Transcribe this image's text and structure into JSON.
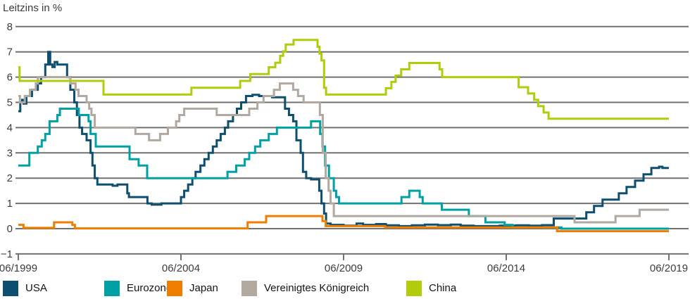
{
  "header": {
    "title": "Leitzins in %"
  },
  "legend": {
    "items": [
      {
        "label": "USA",
        "color": "#0e4e6e"
      },
      {
        "label": "Eurozone",
        "color": "#00a0a5"
      },
      {
        "label": "Japan",
        "color": "#ef7d00"
      },
      {
        "label": "Vereinigtes Königreich",
        "color": "#b1a8a0"
      },
      {
        "label": "China",
        "color": "#b2cb0b"
      }
    ]
  },
  "chart_data": {
    "type": "line",
    "line_style": "step-after",
    "title": "Leitzins in %",
    "ylabel": "Leitzins in %",
    "xlabel": "",
    "grid": true,
    "legend_position": "bottom",
    "ylim": [
      -1,
      8
    ],
    "yticks": [
      8,
      7,
      6,
      5,
      4,
      3,
      2,
      1,
      0,
      -1
    ],
    "ytick_labels": [
      "8",
      "7",
      "6",
      "5",
      "4",
      "3",
      "2",
      "1",
      "0",
      "−1"
    ],
    "xlim": [
      1999.5,
      2019.5
    ],
    "xticks": [
      {
        "t": 1999.5,
        "label": "06/1999"
      },
      {
        "t": 2004.5,
        "label": "06/2004"
      },
      {
        "t": 2009.5,
        "label": "06/2009"
      },
      {
        "t": 2014.5,
        "label": "06/2014"
      },
      {
        "t": 2019.5,
        "label": "06/2019"
      }
    ],
    "grid_color": "#717171",
    "text_color": "#3c3c3c",
    "series": [
      {
        "name": "USA",
        "color": "#0e4e6e",
        "points": [
          [
            1999.5,
            4.65
          ],
          [
            1999.56,
            5.0
          ],
          [
            1999.62,
            5.1
          ],
          [
            1999.66,
            4.95
          ],
          [
            1999.75,
            5.25
          ],
          [
            1999.92,
            5.5
          ],
          [
            2000.1,
            5.75
          ],
          [
            2000.2,
            6.0
          ],
          [
            2000.33,
            6.5
          ],
          [
            2000.42,
            7.0
          ],
          [
            2000.48,
            6.5
          ],
          [
            2000.55,
            6.4
          ],
          [
            2000.62,
            6.6
          ],
          [
            2000.7,
            6.5
          ],
          [
            2001.0,
            6.0
          ],
          [
            2001.1,
            5.5
          ],
          [
            2001.22,
            5.0
          ],
          [
            2001.3,
            4.5
          ],
          [
            2001.38,
            4.0
          ],
          [
            2001.46,
            3.75
          ],
          [
            2001.6,
            3.5
          ],
          [
            2001.72,
            3.0
          ],
          [
            2001.78,
            2.5
          ],
          [
            2001.85,
            2.0
          ],
          [
            2001.93,
            1.75
          ],
          [
            2002.4,
            1.7
          ],
          [
            2002.55,
            1.75
          ],
          [
            2002.85,
            1.4
          ],
          [
            2002.9,
            1.25
          ],
          [
            2003.47,
            1.0
          ],
          [
            2003.6,
            0.95
          ],
          [
            2003.9,
            1.0
          ],
          [
            2004.5,
            1.25
          ],
          [
            2004.6,
            1.5
          ],
          [
            2004.72,
            1.75
          ],
          [
            2004.85,
            2.0
          ],
          [
            2004.95,
            2.25
          ],
          [
            2005.1,
            2.5
          ],
          [
            2005.22,
            2.75
          ],
          [
            2005.35,
            3.0
          ],
          [
            2005.48,
            3.25
          ],
          [
            2005.6,
            3.5
          ],
          [
            2005.72,
            3.75
          ],
          [
            2005.85,
            4.0
          ],
          [
            2005.95,
            4.25
          ],
          [
            2006.1,
            4.5
          ],
          [
            2006.22,
            4.75
          ],
          [
            2006.35,
            5.0
          ],
          [
            2006.5,
            5.25
          ],
          [
            2006.7,
            5.3
          ],
          [
            2006.9,
            5.25
          ],
          [
            2007.3,
            5.2
          ],
          [
            2007.7,
            4.75
          ],
          [
            2007.82,
            4.5
          ],
          [
            2007.95,
            4.25
          ],
          [
            2008.05,
            3.5
          ],
          [
            2008.18,
            3.0
          ],
          [
            2008.25,
            2.25
          ],
          [
            2008.35,
            2.0
          ],
          [
            2008.5,
            1.95
          ],
          [
            2008.75,
            1.5
          ],
          [
            2008.82,
            1.0
          ],
          [
            2008.9,
            0.6
          ],
          [
            2008.96,
            0.2
          ],
          [
            2009.1,
            0.15
          ],
          [
            2009.5,
            0.12
          ],
          [
            2009.9,
            0.2
          ],
          [
            2010.1,
            0.15
          ],
          [
            2010.5,
            0.18
          ],
          [
            2010.8,
            0.13
          ],
          [
            2011.2,
            0.1
          ],
          [
            2011.6,
            0.13
          ],
          [
            2012.0,
            0.16
          ],
          [
            2012.4,
            0.14
          ],
          [
            2012.8,
            0.16
          ],
          [
            2013.1,
            0.12
          ],
          [
            2013.5,
            0.1
          ],
          [
            2013.9,
            0.1
          ],
          [
            2014.3,
            0.12
          ],
          [
            2014.8,
            0.13
          ],
          [
            2015.2,
            0.12
          ],
          [
            2015.6,
            0.14
          ],
          [
            2015.96,
            0.4
          ],
          [
            2016.96,
            0.65
          ],
          [
            2017.2,
            0.9
          ],
          [
            2017.46,
            1.15
          ],
          [
            2017.96,
            1.4
          ],
          [
            2018.2,
            1.65
          ],
          [
            2018.46,
            1.9
          ],
          [
            2018.72,
            2.15
          ],
          [
            2018.96,
            2.4
          ],
          [
            2019.2,
            2.45
          ],
          [
            2019.3,
            2.4
          ]
        ]
      },
      {
        "name": "Eurozone",
        "color": "#00a0a5",
        "points": [
          [
            1999.5,
            2.5
          ],
          [
            1999.84,
            3.0
          ],
          [
            2000.1,
            3.25
          ],
          [
            2000.22,
            3.5
          ],
          [
            2000.33,
            3.75
          ],
          [
            2000.46,
            4.25
          ],
          [
            2000.7,
            4.5
          ],
          [
            2000.78,
            4.75
          ],
          [
            2001.36,
            4.5
          ],
          [
            2001.66,
            4.25
          ],
          [
            2001.72,
            3.75
          ],
          [
            2001.88,
            3.25
          ],
          [
            2002.92,
            2.75
          ],
          [
            2003.2,
            2.5
          ],
          [
            2003.46,
            2.0
          ],
          [
            2005.93,
            2.25
          ],
          [
            2006.2,
            2.5
          ],
          [
            2006.46,
            2.75
          ],
          [
            2006.6,
            3.0
          ],
          [
            2006.78,
            3.25
          ],
          [
            2006.94,
            3.5
          ],
          [
            2007.2,
            3.75
          ],
          [
            2007.45,
            4.0
          ],
          [
            2008.5,
            4.25
          ],
          [
            2008.78,
            3.75
          ],
          [
            2008.85,
            3.25
          ],
          [
            2008.93,
            2.5
          ],
          [
            2009.05,
            2.0
          ],
          [
            2009.2,
            1.5
          ],
          [
            2009.27,
            1.25
          ],
          [
            2009.36,
            1.0
          ],
          [
            2011.28,
            1.25
          ],
          [
            2011.52,
            1.5
          ],
          [
            2011.84,
            1.25
          ],
          [
            2011.93,
            1.0
          ],
          [
            2012.52,
            0.75
          ],
          [
            2013.35,
            0.5
          ],
          [
            2013.86,
            0.25
          ],
          [
            2014.45,
            0.15
          ],
          [
            2014.7,
            0.05
          ],
          [
            2016.2,
            0.0
          ]
        ]
      },
      {
        "name": "Japan",
        "color": "#ef7d00",
        "points": [
          [
            1999.5,
            0.15
          ],
          [
            1999.66,
            0.03
          ],
          [
            2000.6,
            0.25
          ],
          [
            2001.16,
            0.15
          ],
          [
            2001.24,
            0.01
          ],
          [
            2006.55,
            0.25
          ],
          [
            2007.12,
            0.5
          ],
          [
            2008.85,
            0.3
          ],
          [
            2008.95,
            0.1
          ],
          [
            2010.78,
            0.05
          ],
          [
            2016.06,
            -0.1
          ]
        ]
      },
      {
        "name": "Vereinigtes Königreich",
        "color": "#b1a8a0",
        "points": [
          [
            1999.5,
            5.25
          ],
          [
            1999.55,
            5.0
          ],
          [
            1999.7,
            5.25
          ],
          [
            1999.86,
            5.5
          ],
          [
            2000.04,
            5.75
          ],
          [
            2000.1,
            6.0
          ],
          [
            2001.1,
            5.75
          ],
          [
            2001.26,
            5.5
          ],
          [
            2001.35,
            5.25
          ],
          [
            2001.6,
            5.0
          ],
          [
            2001.68,
            4.75
          ],
          [
            2001.75,
            4.5
          ],
          [
            2001.85,
            4.0
          ],
          [
            2003.1,
            3.75
          ],
          [
            2003.52,
            3.5
          ],
          [
            2003.86,
            3.75
          ],
          [
            2004.1,
            4.0
          ],
          [
            2004.35,
            4.25
          ],
          [
            2004.45,
            4.5
          ],
          [
            2004.6,
            4.75
          ],
          [
            2005.6,
            4.5
          ],
          [
            2006.6,
            4.75
          ],
          [
            2006.85,
            5.0
          ],
          [
            2007.04,
            5.25
          ],
          [
            2007.36,
            5.5
          ],
          [
            2007.54,
            5.75
          ],
          [
            2007.95,
            5.5
          ],
          [
            2008.1,
            5.25
          ],
          [
            2008.27,
            5.0
          ],
          [
            2008.77,
            4.5
          ],
          [
            2008.86,
            3.0
          ],
          [
            2008.95,
            2.0
          ],
          [
            2009.04,
            1.5
          ],
          [
            2009.1,
            1.0
          ],
          [
            2009.2,
            0.5
          ],
          [
            2016.6,
            0.25
          ],
          [
            2017.86,
            0.5
          ],
          [
            2018.6,
            0.75
          ]
        ]
      },
      {
        "name": "China",
        "color": "#b2cb0b",
        "points": [
          [
            1999.5,
            6.39
          ],
          [
            1999.54,
            5.85
          ],
          [
            2002.12,
            5.31
          ],
          [
            2004.82,
            5.58
          ],
          [
            2006.32,
            5.85
          ],
          [
            2006.63,
            6.12
          ],
          [
            2007.2,
            6.39
          ],
          [
            2007.4,
            6.57
          ],
          [
            2007.55,
            6.84
          ],
          [
            2007.64,
            7.02
          ],
          [
            2007.72,
            7.29
          ],
          [
            2007.96,
            7.47
          ],
          [
            2008.7,
            7.2
          ],
          [
            2008.76,
            6.93
          ],
          [
            2008.82,
            6.66
          ],
          [
            2008.9,
            5.58
          ],
          [
            2008.96,
            5.31
          ],
          [
            2010.8,
            5.56
          ],
          [
            2010.97,
            5.81
          ],
          [
            2011.1,
            6.06
          ],
          [
            2011.27,
            6.31
          ],
          [
            2011.52,
            6.56
          ],
          [
            2012.45,
            6.31
          ],
          [
            2012.53,
            6.0
          ],
          [
            2014.88,
            5.6
          ],
          [
            2015.17,
            5.35
          ],
          [
            2015.36,
            5.1
          ],
          [
            2015.48,
            4.85
          ],
          [
            2015.65,
            4.6
          ],
          [
            2015.8,
            4.35
          ]
        ]
      }
    ]
  }
}
